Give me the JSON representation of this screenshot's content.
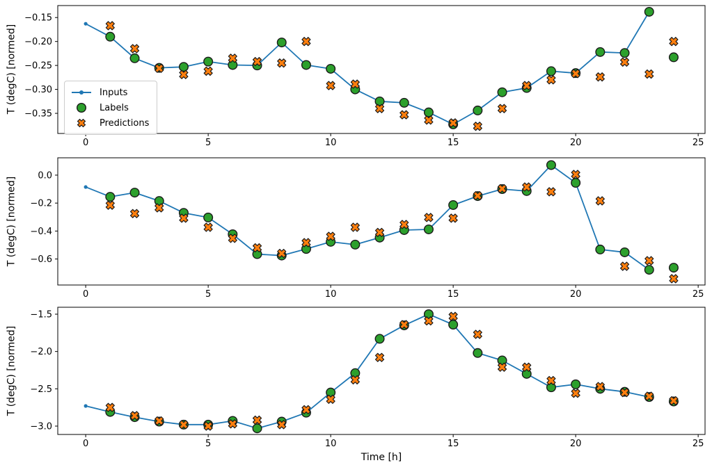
{
  "figure": {
    "ylabel": "T (degC) [normed]",
    "xlabel": "Time [h]",
    "background": "#ffffff",
    "colors": {
      "inputs": "#1f77b4",
      "labels": "#2ca02c",
      "predictions": "#ff7f0e",
      "marker_edge": "#1a1a1a",
      "axes_frame": "#000000",
      "legend_border": "#cccccc"
    },
    "legend": {
      "position": "upper left",
      "items": [
        {
          "label": "Inputs"
        },
        {
          "label": "Labels"
        },
        {
          "label": "Predictions"
        }
      ]
    }
  },
  "chart_data": [
    {
      "type": "line",
      "title": "",
      "xlabel": "",
      "ylabel": "T (degC) [normed]",
      "xlim": [
        -1.14,
        25.28
      ],
      "ylim": [
        -0.392,
        -0.125
      ],
      "xticks": {
        "values": [
          0,
          5,
          10,
          15,
          20,
          25
        ],
        "labels": [
          "0",
          "5",
          "10",
          "15",
          "20",
          "25"
        ]
      },
      "yticks": {
        "values": [
          -0.15,
          -0.2,
          -0.25,
          -0.3,
          -0.35
        ],
        "labels": [
          "−0.15",
          "−0.20",
          "−0.25",
          "−0.30",
          "−0.35"
        ]
      },
      "grid": false,
      "legend": true,
      "series": [
        {
          "name": "Inputs",
          "kind": "line-dot",
          "x": [
            0,
            1,
            2,
            3,
            4,
            5,
            6,
            7,
            8,
            9,
            10,
            11,
            12,
            13,
            14,
            15,
            16,
            17,
            18,
            19,
            20,
            21,
            22,
            23
          ],
          "y": [
            -0.163,
            -0.19,
            -0.235,
            -0.255,
            -0.253,
            -0.242,
            -0.249,
            -0.25,
            -0.202,
            -0.249,
            -0.257,
            -0.3,
            -0.325,
            -0.328,
            -0.348,
            -0.373,
            -0.344,
            -0.306,
            -0.297,
            -0.262,
            -0.266,
            -0.222,
            -0.224,
            -0.138
          ]
        },
        {
          "name": "Labels",
          "kind": "scatter-circle",
          "x": [
            1,
            2,
            3,
            4,
            5,
            6,
            7,
            8,
            9,
            10,
            11,
            12,
            13,
            14,
            15,
            16,
            17,
            18,
            19,
            20,
            21,
            22,
            23,
            24
          ],
          "y": [
            -0.19,
            -0.235,
            -0.255,
            -0.253,
            -0.242,
            -0.249,
            -0.25,
            -0.202,
            -0.249,
            -0.257,
            -0.3,
            -0.325,
            -0.328,
            -0.348,
            -0.373,
            -0.344,
            -0.306,
            -0.297,
            -0.262,
            -0.266,
            -0.222,
            -0.224,
            -0.138,
            -0.233
          ]
        },
        {
          "name": "Predictions",
          "kind": "scatter-x",
          "x": [
            1,
            2,
            3,
            4,
            5,
            6,
            7,
            8,
            9,
            10,
            11,
            12,
            13,
            14,
            15,
            16,
            17,
            18,
            19,
            20,
            21,
            22,
            23,
            24
          ],
          "y": [
            -0.167,
            -0.215,
            -0.256,
            -0.269,
            -0.262,
            -0.235,
            -0.242,
            -0.245,
            -0.2,
            -0.292,
            -0.289,
            -0.34,
            -0.353,
            -0.364,
            -0.37,
            -0.377,
            -0.34,
            -0.292,
            -0.28,
            -0.267,
            -0.274,
            -0.243,
            -0.268,
            -0.2
          ]
        }
      ]
    },
    {
      "type": "line",
      "title": "",
      "xlabel": "",
      "ylabel": "T (degC) [normed]",
      "xlim": [
        -1.14,
        25.28
      ],
      "ylim": [
        -0.786,
        0.124
      ],
      "xticks": {
        "values": [
          0,
          5,
          10,
          15,
          20,
          25
        ],
        "labels": [
          "0",
          "5",
          "10",
          "15",
          "20",
          "25"
        ]
      },
      "yticks": {
        "values": [
          0.0,
          -0.2,
          -0.4,
          -0.6
        ],
        "labels": [
          "0.0",
          "−0.2",
          "−0.4",
          "−0.6"
        ]
      },
      "grid": false,
      "legend": false,
      "series": [
        {
          "name": "Inputs",
          "kind": "line-dot",
          "x": [
            0,
            1,
            2,
            3,
            4,
            5,
            6,
            7,
            8,
            9,
            10,
            11,
            12,
            13,
            14,
            15,
            16,
            17,
            18,
            19,
            20,
            21,
            22,
            23
          ],
          "y": [
            -0.085,
            -0.155,
            -0.125,
            -0.185,
            -0.27,
            -0.303,
            -0.423,
            -0.565,
            -0.575,
            -0.528,
            -0.477,
            -0.497,
            -0.447,
            -0.393,
            -0.388,
            -0.214,
            -0.15,
            -0.1,
            -0.114,
            0.072,
            -0.055,
            -0.532,
            -0.552,
            -0.677
          ]
        },
        {
          "name": "Labels",
          "kind": "scatter-circle",
          "x": [
            1,
            2,
            3,
            4,
            5,
            6,
            7,
            8,
            9,
            10,
            11,
            12,
            13,
            14,
            15,
            16,
            17,
            18,
            19,
            20,
            21,
            22,
            23,
            24
          ],
          "y": [
            -0.155,
            -0.125,
            -0.185,
            -0.27,
            -0.303,
            -0.423,
            -0.565,
            -0.575,
            -0.528,
            -0.477,
            -0.497,
            -0.447,
            -0.393,
            -0.388,
            -0.214,
            -0.15,
            -0.1,
            -0.114,
            0.072,
            -0.055,
            -0.532,
            -0.552,
            -0.677,
            -0.662
          ]
        },
        {
          "name": "Predictions",
          "kind": "scatter-x",
          "x": [
            1,
            2,
            3,
            4,
            5,
            6,
            7,
            8,
            9,
            10,
            11,
            12,
            13,
            14,
            15,
            16,
            17,
            18,
            19,
            20,
            21,
            22,
            23,
            24
          ],
          "y": [
            -0.215,
            -0.275,
            -0.234,
            -0.308,
            -0.373,
            -0.452,
            -0.52,
            -0.56,
            -0.483,
            -0.438,
            -0.373,
            -0.41,
            -0.353,
            -0.303,
            -0.308,
            -0.147,
            -0.097,
            -0.085,
            -0.119,
            0.005,
            -0.184,
            -0.652,
            -0.612,
            -0.741
          ]
        }
      ]
    },
    {
      "type": "line",
      "title": "",
      "xlabel": "Time [h]",
      "ylabel": "T (degC) [normed]",
      "xlim": [
        -1.14,
        25.28
      ],
      "ylim": [
        -3.112,
        -1.407
      ],
      "xticks": {
        "values": [
          0,
          5,
          10,
          15,
          20,
          25
        ],
        "labels": [
          "0",
          "5",
          "10",
          "15",
          "20",
          "25"
        ]
      },
      "yticks": {
        "values": [
          -1.5,
          -2.0,
          -2.5,
          -3.0
        ],
        "labels": [
          "−1.5",
          "−2.0",
          "−2.5",
          "−3.0"
        ]
      },
      "grid": false,
      "legend": false,
      "series": [
        {
          "name": "Inputs",
          "kind": "line-dot",
          "x": [
            0,
            1,
            2,
            3,
            4,
            5,
            6,
            7,
            8,
            9,
            10,
            11,
            12,
            13,
            14,
            15,
            16,
            17,
            18,
            19,
            20,
            21,
            22,
            23
          ],
          "y": [
            -2.73,
            -2.81,
            -2.88,
            -2.94,
            -2.98,
            -2.98,
            -2.93,
            -3.03,
            -2.94,
            -2.82,
            -2.55,
            -2.29,
            -1.83,
            -1.65,
            -1.5,
            -1.64,
            -2.02,
            -2.12,
            -2.3,
            -2.48,
            -2.44,
            -2.5,
            -2.54,
            -2.61
          ]
        },
        {
          "name": "Labels",
          "kind": "scatter-circle",
          "x": [
            1,
            2,
            3,
            4,
            5,
            6,
            7,
            8,
            9,
            10,
            11,
            12,
            13,
            14,
            15,
            16,
            17,
            18,
            19,
            20,
            21,
            22,
            23,
            24
          ],
          "y": [
            -2.81,
            -2.88,
            -2.94,
            -2.98,
            -2.98,
            -2.93,
            -3.03,
            -2.94,
            -2.82,
            -2.55,
            -2.29,
            -1.83,
            -1.65,
            -1.5,
            -1.64,
            -2.02,
            -2.12,
            -2.3,
            -2.48,
            -2.44,
            -2.5,
            -2.54,
            -2.61,
            -2.67
          ]
        },
        {
          "name": "Predictions",
          "kind": "scatter-x",
          "x": [
            1,
            2,
            3,
            4,
            5,
            6,
            7,
            8,
            9,
            10,
            11,
            12,
            13,
            14,
            15,
            16,
            17,
            18,
            19,
            20,
            21,
            22,
            23,
            24
          ],
          "y": [
            -2.75,
            -2.86,
            -2.93,
            -2.98,
            -3.0,
            -2.97,
            -2.92,
            -2.98,
            -2.78,
            -2.64,
            -2.38,
            -2.08,
            -1.64,
            -1.59,
            -1.53,
            -1.77,
            -2.21,
            -2.21,
            -2.39,
            -2.56,
            -2.47,
            -2.55,
            -2.6,
            -2.66
          ]
        }
      ]
    }
  ]
}
